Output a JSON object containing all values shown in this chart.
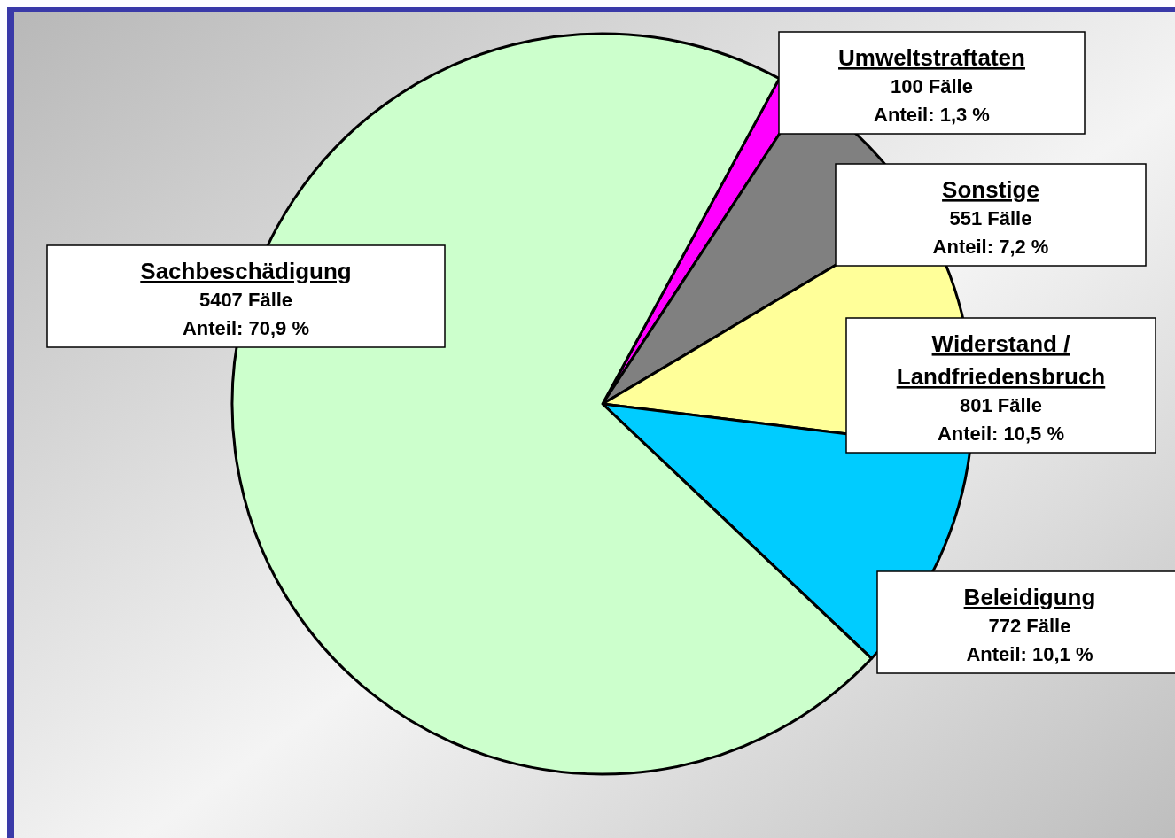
{
  "chart_data": {
    "type": "pie",
    "categories": [
      "Umweltstraftaten",
      "Sonstige",
      "Widerstand / Landfriedensbruch",
      "Beleidigung",
      "Sachbeschädigung"
    ],
    "values": [
      100,
      551,
      801,
      772,
      5407
    ],
    "colors": [
      "#ff00ff",
      "#808080",
      "#ffff99",
      "#00ccff",
      "#ccffcc"
    ],
    "value_labels": [
      "100 Fälle\nAnteil: 1,3 %",
      "551 Fälle\nAnteil: 7,2 %",
      "801 Fälle\nAnteil: 10,5 %",
      "772 Fälle\nAnteil: 10,1 %",
      "5407 Fälle\nAnteil: 70,9 %"
    ]
  }
}
